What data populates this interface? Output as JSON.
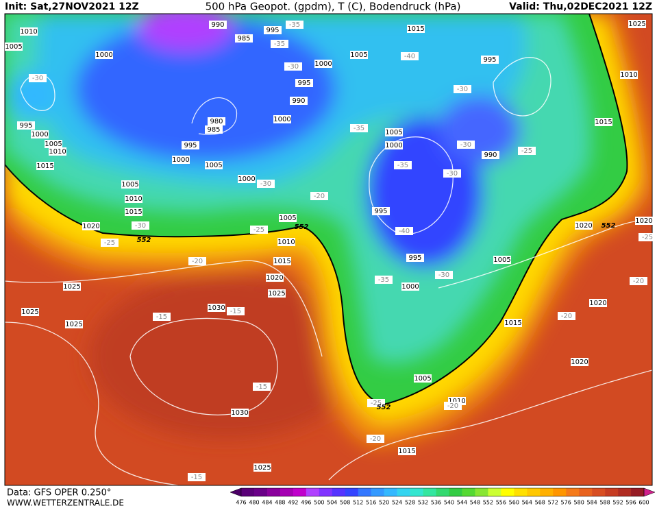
{
  "header": {
    "init": "Init: Sat,27NOV2021 12Z",
    "title": "500 hPa Geopot. (gpdm), T (C), Bodendruck (hPa)",
    "valid": "Valid: Thu,02DEC2021 12Z"
  },
  "footer": {
    "data": "Data: GFS OPER 0.250°",
    "site": "WWW.WETTERZENTRALE.DE"
  },
  "pressure_labels": [
    1010,
    1005,
    1000,
    990,
    995,
    985,
    1000,
    995,
    990,
    1000,
    980,
    985,
    995,
    1000,
    1005,
    1010,
    1015,
    995,
    1000,
    1005,
    1000,
    1005,
    1010,
    1015,
    1020,
    1005,
    1010,
    1015,
    1020,
    1025,
    1025,
    1025,
    1025,
    1030,
    1030,
    1025,
    1015,
    1010,
    1005,
    1000,
    995,
    995,
    1000,
    1005,
    1005,
    1015,
    995,
    990,
    1015,
    1010,
    1025,
    1005,
    1015,
    1020,
    1020,
    1020,
    1020
  ],
  "temperature_labels": [
    -35,
    -35,
    -30,
    -30,
    -40,
    -30,
    -35,
    -30,
    -25,
    -35,
    -30,
    -30,
    -20,
    -30,
    -25,
    -25,
    -40,
    -35,
    -30,
    -20,
    -15,
    -15,
    -15,
    -25,
    -20,
    -20,
    -15,
    -20,
    -20,
    -25
  ],
  "geopotential_labels": [
    552,
    552,
    552,
    552
  ],
  "colorbar": {
    "labels": [
      476,
      480,
      484,
      488,
      492,
      496,
      500,
      504,
      508,
      512,
      516,
      520,
      524,
      528,
      532,
      536,
      540,
      544,
      548,
      552,
      556,
      560,
      564,
      568,
      572,
      576,
      580,
      584,
      588,
      592,
      596,
      600
    ],
    "colors": [
      "#4b0066",
      "#5a0078",
      "#6a0088",
      "#8a009c",
      "#a500b3",
      "#c000cc",
      "#b040ff",
      "#8033ff",
      "#5533ff",
      "#3344ff",
      "#3377ff",
      "#3399ff",
      "#33b8ff",
      "#33d4f0",
      "#33e6d0",
      "#33e6a0",
      "#33d970",
      "#33cc44",
      "#55d933",
      "#88e633",
      "#ccff33",
      "#ffff00",
      "#ffe000",
      "#ffc800",
      "#ffb000",
      "#ff9600",
      "#f57a1a",
      "#e8621e",
      "#d84e22",
      "#c63c22",
      "#b02c22",
      "#961c24",
      "#d0208c"
    ]
  }
}
